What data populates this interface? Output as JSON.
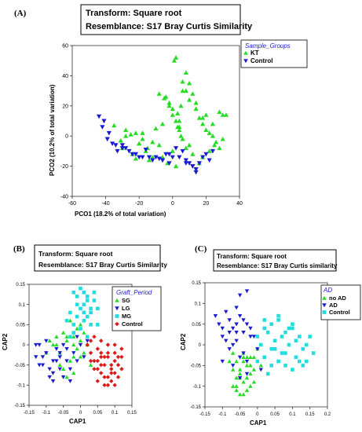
{
  "panels": [
    {
      "letter": "(A)",
      "header": {
        "line1": "Transform: Square root",
        "line2": "Resemblance: S17 Bray Curtis Similarity"
      },
      "chart_data": {
        "type": "scatter",
        "xlabel": "PCO1 (18.2% of total variation)",
        "ylabel": "PCO2 (10.2% of total variation)",
        "xlim": [
          -60,
          40
        ],
        "ylim": [
          -40,
          60
        ],
        "xticks": [
          "-60",
          "-40",
          "-20",
          "0",
          "20",
          "40"
        ],
        "yticks": [
          "-40",
          "-20",
          "0",
          "20",
          "40",
          "60"
        ],
        "legend_title": "Sample_Groups",
        "series": [
          {
            "name": "KT",
            "color": "#22dd22",
            "marker": "triangle-up",
            "x": [
              -35,
              -31,
              -28,
              -30,
              -24,
              -22,
              -20,
              -18,
              -16,
              -14,
              -12,
              -10,
              -8,
              -6,
              -4,
              -2,
              0,
              1,
              2,
              3,
              4,
              5,
              6,
              8,
              10,
              12,
              14,
              16,
              18,
              20,
              22,
              24,
              26,
              28,
              30,
              32,
              -8,
              -5,
              -2,
              0,
              2,
              4,
              6,
              8,
              10,
              12,
              -25,
              -20,
              -15,
              -12,
              14,
              18,
              20,
              24,
              28,
              30,
              6,
              8,
              10,
              3,
              4,
              5,
              0,
              -3,
              -6,
              2,
              16,
              18,
              22,
              25,
              -18,
              -22,
              -28
            ],
            "y": [
              7,
              -3,
              4,
              -8,
              -12,
              -15,
              -5,
              2,
              -10,
              -16,
              -4,
              5,
              -6,
              8,
              26,
              22,
              18,
              50,
              52,
              15,
              10,
              20,
              30,
              42,
              35,
              28,
              22,
              12,
              8,
              4,
              2,
              0,
              -4,
              -8,
              -2,
              14,
              28,
              25,
              20,
              14,
              10,
              6,
              -2,
              -8,
              -6,
              -12,
              1,
              -5,
              -8,
              -14,
              18,
              12,
              14,
              8,
              16,
              14,
              36,
              30,
              24,
              6,
              4,
              0,
              -10,
              -18,
              -14,
              -20,
              -18,
              -14,
              -10,
              -6,
              -2,
              2,
              0
            ]
          },
          {
            "name": "Control",
            "color": "#1a1ad0",
            "marker": "triangle-down",
            "x": [
              -44,
              -41,
              -38,
              -36,
              -33,
              -30,
              -28,
              -26,
              -22,
              -20,
              -16,
              -14,
              -12,
              -10,
              -8,
              -6,
              -4,
              -2,
              0,
              2,
              6,
              8,
              10,
              12,
              14,
              16,
              18,
              20,
              22,
              24,
              -42,
              -39,
              -34,
              -30,
              -24,
              -18,
              -6,
              -2,
              4,
              14,
              12,
              8
            ],
            "y": [
              13,
              10,
              2,
              -5,
              -10,
              -6,
              -8,
              -10,
              -12,
              -14,
              -9,
              -14,
              -16,
              -14,
              -15,
              -16,
              -12,
              -12,
              -14,
              -8,
              -10,
              -16,
              -18,
              -20,
              -22,
              -18,
              -14,
              -12,
              -16,
              -10,
              6,
              -2,
              -6,
              -8,
              -12,
              -14,
              -16,
              -18,
              -14,
              -24,
              -20,
              -18
            ]
          }
        ]
      }
    },
    {
      "letter": "(B)",
      "header": {
        "line1": "Transform: Square root",
        "line2": "Resemblance: S17 Bray Curtis Similarity"
      },
      "chart_data": {
        "type": "scatter",
        "xlabel": "CAP1",
        "ylabel": "CAP2",
        "xlim": [
          -0.15,
          0.15
        ],
        "ylim": [
          -0.15,
          0.15
        ],
        "xticks": [
          "-0.15",
          "-0.1",
          "-0.05",
          "0",
          "0.05",
          "0.1",
          "0.15"
        ],
        "yticks": [
          "-0.15",
          "-0.1",
          "-0.05",
          "0",
          "0.05",
          "0.1",
          "0.15"
        ],
        "legend_title": "Graft_Period",
        "series": [
          {
            "name": "SG",
            "color": "#22dd22",
            "marker": "triangle-up",
            "x": [
              -0.08,
              -0.07,
              -0.06,
              -0.05,
              -0.04,
              -0.03,
              -0.02,
              -0.01,
              0,
              0.01,
              0.02,
              -0.06,
              -0.04,
              -0.02,
              0,
              -0.03,
              -0.01,
              0.01,
              -0.05,
              -0.09,
              -0.02,
              0.02,
              -0.07,
              -0.04,
              -0.02,
              0.03,
              -0.1,
              0.0
            ],
            "y": [
              0.0,
              0.02,
              -0.02,
              0.03,
              0.01,
              -0.04,
              0.02,
              0.04,
              0.01,
              -0.02,
              0.0,
              -0.05,
              -0.08,
              -0.03,
              0.05,
              0.06,
              -0.01,
              0.03,
              -0.06,
              0.01,
              -0.07,
              0.02,
              0.0,
              0.02,
              0.0,
              -0.05,
              -0.02,
              -0.03
            ]
          },
          {
            "name": "LG",
            "color": "#1a1ad0",
            "marker": "triangle-down",
            "x": [
              -0.13,
              -0.12,
              -0.11,
              -0.1,
              -0.09,
              -0.08,
              -0.07,
              -0.06,
              -0.05,
              -0.04,
              -0.03,
              -0.02,
              -0.01,
              0.0,
              0.01,
              -0.12,
              -0.1,
              -0.08,
              -0.06,
              -0.04,
              -0.09,
              -0.11,
              -0.07,
              -0.03,
              -0.05,
              0.02,
              -0.01,
              -0.13,
              -0.08,
              -0.06
            ],
            "y": [
              -0.03,
              0.0,
              -0.05,
              -0.02,
              -0.08,
              -0.04,
              -0.01,
              -0.06,
              0.0,
              -0.04,
              -0.09,
              -0.02,
              0.02,
              0.0,
              -0.03,
              -0.05,
              0.01,
              -0.07,
              -0.03,
              -0.01,
              -0.06,
              -0.03,
              -0.04,
              -0.06,
              -0.08,
              0.01,
              -0.04,
              0.0,
              -0.09,
              -0.02
            ]
          },
          {
            "name": "MG",
            "color": "#22dddd",
            "marker": "square",
            "x": [
              -0.02,
              -0.01,
              0.0,
              0.01,
              0.02,
              0.03,
              0.04,
              -0.03,
              -0.01,
              0.01,
              0.03,
              0.05,
              0.0,
              0.02,
              -0.02,
              0.04,
              -0.04,
              0.02,
              0.0,
              -0.01,
              0.03,
              0.01,
              -0.02,
              0.05,
              0.02,
              -0.03,
              0.01
            ],
            "y": [
              0.13,
              0.12,
              0.14,
              0.1,
              0.12,
              0.09,
              0.11,
              0.08,
              0.07,
              0.06,
              0.08,
              0.05,
              0.09,
              0.11,
              0.03,
              0.13,
              0.06,
              0.02,
              0.04,
              0.1,
              0.05,
              0.13,
              0.05,
              0.09,
              0.07,
              0.02,
              0.08
            ]
          },
          {
            "name": "Control",
            "color": "#dd1a1a",
            "marker": "diamond",
            "x": [
              0.02,
              0.03,
              0.04,
              0.05,
              0.06,
              0.07,
              0.08,
              0.09,
              0.1,
              0.11,
              0.12,
              0.04,
              0.06,
              0.08,
              0.1,
              0.05,
              0.07,
              0.09,
              0.03,
              0.06,
              0.08,
              0.1,
              0.12,
              0.05,
              0.07,
              0.09,
              0.11,
              0.04,
              0.06,
              0.08,
              0.1,
              0.03,
              0.07,
              0.09,
              0.11,
              0.05,
              0.08,
              0.06,
              0.1,
              0.12
            ],
            "y": [
              0.0,
              -0.02,
              -0.04,
              -0.01,
              -0.03,
              -0.05,
              -0.02,
              -0.06,
              -0.04,
              -0.03,
              -0.01,
              -0.06,
              -0.07,
              -0.08,
              -0.1,
              -0.09,
              -0.1,
              -0.05,
              0.01,
              0.01,
              0.0,
              -0.07,
              -0.06,
              -0.04,
              -0.08,
              -0.09,
              -0.05,
              0.02,
              -0.05,
              -0.03,
              -0.02,
              -0.04,
              -0.03,
              -0.07,
              -0.08,
              -0.06,
              -0.1,
              -0.02,
              0.0,
              -0.03
            ]
          }
        ]
      }
    },
    {
      "letter": "(C)",
      "header": {
        "line1": "Transform: Square root",
        "line2": "Resemblance: S17 Bray Curtis similarity"
      },
      "chart_data": {
        "type": "scatter",
        "xlabel": "CAP1",
        "ylabel": "CAP2",
        "xlim": [
          -0.15,
          0.2
        ],
        "ylim": [
          -0.15,
          0.15
        ],
        "xticks": [
          "-0.15",
          "-0.1",
          "-0.05",
          "0",
          "0.05",
          "0.1",
          "0.15",
          "0.2"
        ],
        "yticks": [
          "-0.15",
          "-0.1",
          "-0.05",
          "0",
          "0.05",
          "0.1",
          "0.15"
        ],
        "legend_title": "AD",
        "series": [
          {
            "name": "no AD",
            "color": "#22dd22",
            "marker": "triangle-up",
            "x": [
              -0.07,
              -0.06,
              -0.05,
              -0.04,
              -0.03,
              -0.02,
              -0.01,
              0.0,
              -0.06,
              -0.05,
              -0.04,
              -0.03,
              -0.02,
              -0.07,
              -0.05,
              -0.03,
              -0.01,
              -0.04,
              -0.06,
              -0.02,
              0.01,
              -0.08,
              -0.04,
              -0.03,
              -0.05,
              -0.02,
              -0.06,
              -0.01,
              -0.04,
              -0.07
            ],
            "y": [
              -0.02,
              -0.04,
              -0.06,
              -0.03,
              -0.08,
              -0.05,
              -0.03,
              -0.01,
              -0.1,
              -0.12,
              -0.09,
              -0.11,
              -0.07,
              -0.06,
              -0.08,
              -0.05,
              -0.09,
              -0.02,
              -0.11,
              -0.1,
              -0.05,
              -0.04,
              -0.12,
              -0.03,
              -0.07,
              -0.03,
              -0.08,
              -0.06,
              -0.04,
              -0.1
            ]
          },
          {
            "name": "AD",
            "color": "#1a1ad0",
            "marker": "triangle-down",
            "x": [
              -0.12,
              -0.11,
              -0.1,
              -0.09,
              -0.08,
              -0.07,
              -0.06,
              -0.05,
              -0.04,
              -0.03,
              -0.02,
              -0.1,
              -0.08,
              -0.06,
              -0.04,
              -0.02,
              -0.09,
              -0.07,
              -0.05,
              -0.03,
              -0.01,
              0.0,
              -0.06,
              -0.04,
              -0.08,
              -0.05,
              -0.03,
              0.01,
              -0.1,
              -0.07,
              -0.05,
              -0.03,
              -0.06
            ],
            "y": [
              0.07,
              0.05,
              0.04,
              0.08,
              0.06,
              0.04,
              0.05,
              0.07,
              0.03,
              0.05,
              0.04,
              0.02,
              0.03,
              0.09,
              0.06,
              0.02,
              0.01,
              0.0,
              0.12,
              0.13,
              0.02,
              -0.01,
              0.01,
              -0.02,
              -0.01,
              -0.03,
              -0.04,
              -0.06,
              -0.04,
              -0.05,
              -0.08,
              -0.07,
              0.03
            ]
          },
          {
            "name": "Control",
            "color": "#22dddd",
            "marker": "square",
            "x": [
              0.0,
              0.02,
              0.04,
              0.06,
              0.08,
              0.1,
              0.12,
              0.14,
              0.16,
              0.01,
              0.03,
              0.05,
              0.07,
              0.09,
              0.11,
              0.13,
              0.15,
              0.02,
              0.04,
              0.06,
              0.08,
              0.1,
              0.12,
              0.03,
              0.05,
              0.07,
              0.09,
              0.11,
              0.13,
              0.0,
              0.02,
              0.06,
              0.1,
              0.14,
              0.04,
              0.08
            ],
            "y": [
              0.02,
              0.04,
              0.05,
              0.06,
              0.03,
              0.04,
              0.02,
              0.0,
              -0.02,
              0.0,
              0.03,
              -0.01,
              0.02,
              0.0,
              -0.03,
              -0.01,
              0.02,
              -0.03,
              -0.05,
              -0.04,
              -0.02,
              -0.06,
              -0.04,
              -0.07,
              0.01,
              -0.02,
              0.04,
              0.01,
              -0.05,
              -0.04,
              0.06,
              0.07,
              0.05,
              -0.04,
              -0.01,
              -0.05
            ]
          }
        ]
      }
    }
  ]
}
